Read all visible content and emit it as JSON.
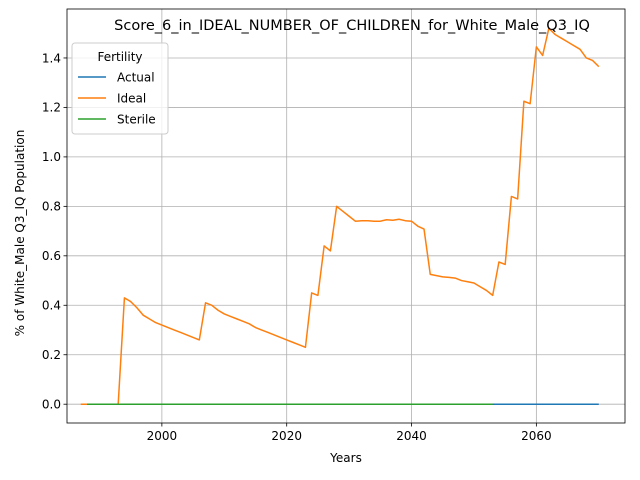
{
  "chart_data": {
    "type": "line",
    "title": "Score_6_in_IDEAL_NUMBER_OF_CHILDREN_for_White_Male_Q3_IQ",
    "xlabel": "Years",
    "ylabel": "% of White_Male Q3_IQ Population",
    "xlim": [
      1984.8,
      2074.2
    ],
    "ylim": [
      -0.076,
      1.598
    ],
    "xticks": [
      2000,
      2020,
      2040,
      2060
    ],
    "yticks": [
      0.0,
      0.2,
      0.4,
      0.6,
      0.8,
      1.0,
      1.2,
      1.4
    ],
    "ytick_labels": [
      "0.0",
      "0.2",
      "0.4",
      "0.6",
      "0.8",
      "1.0",
      "1.2",
      "1.4"
    ],
    "grid": true,
    "legend": {
      "title": "Fertility",
      "position": "top-left"
    },
    "series": [
      {
        "name": "Actual",
        "color": "#1f77b4",
        "x": [
          1988,
          2070
        ],
        "y": [
          0.0,
          0.0
        ]
      },
      {
        "name": "Ideal",
        "color": "#ff7f0e",
        "x": [
          1987,
          1988,
          1989,
          1990,
          1991,
          1992,
          1993,
          1994,
          1995,
          1996,
          1997,
          1998,
          1999,
          2000,
          2001,
          2002,
          2003,
          2004,
          2005,
          2006,
          2007,
          2008,
          2009,
          2010,
          2011,
          2012,
          2013,
          2014,
          2015,
          2016,
          2017,
          2018,
          2019,
          2020,
          2021,
          2022,
          2023,
          2024,
          2025,
          2026,
          2027,
          2028,
          2029,
          2030,
          2031,
          2032,
          2033,
          2034,
          2035,
          2036,
          2037,
          2038,
          2039,
          2040,
          2041,
          2042,
          2043,
          2044,
          2045,
          2046,
          2047,
          2048,
          2049,
          2050,
          2051,
          2052,
          2053,
          2054,
          2055,
          2056,
          2057,
          2058,
          2059,
          2060,
          2061,
          2062,
          2063,
          2064,
          2065,
          2066,
          2067,
          2068,
          2069,
          2070
        ],
        "y": [
          0.0,
          0.0,
          0.0,
          0.0,
          0.0,
          0.0,
          0.0,
          0.43,
          0.415,
          0.39,
          0.36,
          0.345,
          0.33,
          0.32,
          0.31,
          0.3,
          0.29,
          0.28,
          0.27,
          0.26,
          0.41,
          0.4,
          0.38,
          0.365,
          0.355,
          0.345,
          0.335,
          0.325,
          0.31,
          0.3,
          0.29,
          0.28,
          0.27,
          0.26,
          0.25,
          0.24,
          0.23,
          0.45,
          0.44,
          0.64,
          0.62,
          0.8,
          0.78,
          0.76,
          0.74,
          0.742,
          0.742,
          0.74,
          0.74,
          0.746,
          0.744,
          0.748,
          0.742,
          0.74,
          0.72,
          0.708,
          0.525,
          0.52,
          0.515,
          0.513,
          0.51,
          0.5,
          0.495,
          0.49,
          0.475,
          0.46,
          0.44,
          0.575,
          0.565,
          0.84,
          0.83,
          1.225,
          1.215,
          1.445,
          1.41,
          1.52,
          1.495,
          1.48,
          1.465,
          1.45,
          1.435,
          1.4,
          1.39,
          1.365
        ]
      },
      {
        "name": "Sterile",
        "color": "#2ca02c",
        "x": [
          1988,
          2053
        ],
        "y": [
          0.0,
          0.0
        ]
      }
    ]
  }
}
